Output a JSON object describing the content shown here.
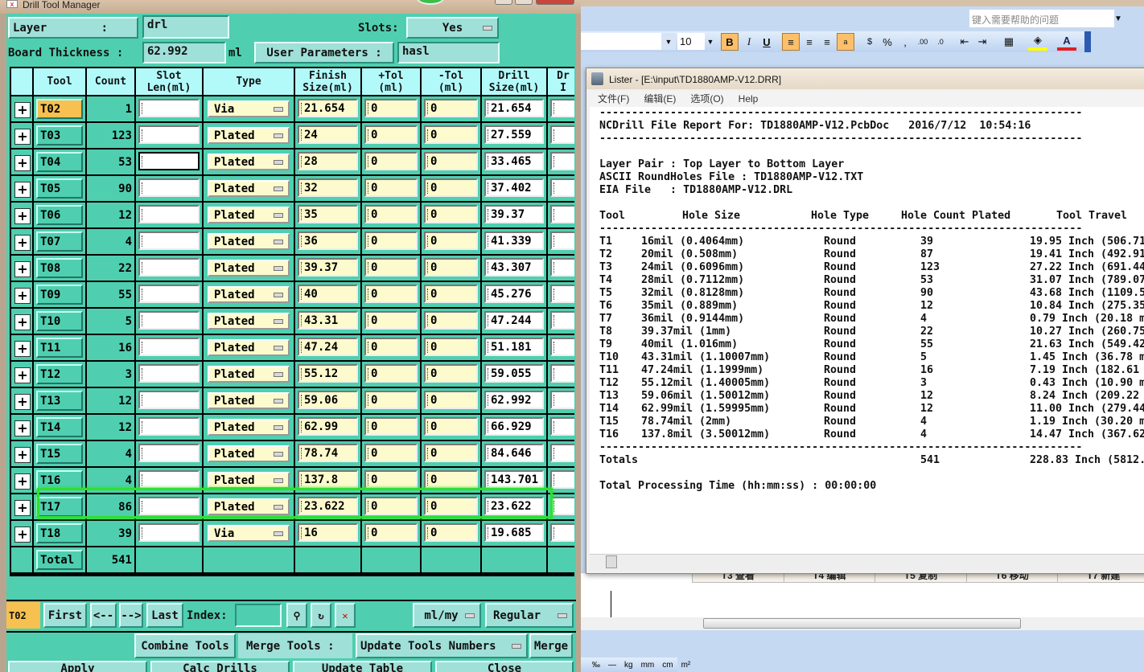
{
  "window": {
    "title": "Drill Tool Manager"
  },
  "top": {
    "layer_label": "Layer        :",
    "layer_value": "drl",
    "slots_label": "Slots:",
    "slots_value": "Yes",
    "board_label": "Board Thickness :",
    "board_value": "62.992",
    "board_unit": "ml",
    "user_params_label": "User Parameters :",
    "user_params_value": "hasl"
  },
  "table": {
    "headers": [
      "Tool",
      "Count",
      "Slot\nLen(ml)",
      "Type",
      "Finish\nSize(ml)",
      "+Tol\n(ml)",
      "-Tol\n(ml)",
      "Drill\nSize(ml)",
      "Dr\nI"
    ],
    "rows": [
      {
        "tool": "T02",
        "count": "1",
        "slot": "",
        "type": "Via",
        "finish": "21.654",
        "plus": "0",
        "minus": "0",
        "drill": "21.654",
        "selected": true
      },
      {
        "tool": "T03",
        "count": "123",
        "slot": "",
        "type": "Plated",
        "finish": "24",
        "plus": "0",
        "minus": "0",
        "drill": "27.559"
      },
      {
        "tool": "T04",
        "count": "53",
        "slot": "",
        "type": "Plated",
        "finish": "28",
        "plus": "0",
        "minus": "0",
        "drill": "33.465"
      },
      {
        "tool": "T05",
        "count": "90",
        "slot": "",
        "type": "Plated",
        "finish": "32",
        "plus": "0",
        "minus": "0",
        "drill": "37.402"
      },
      {
        "tool": "T06",
        "count": "12",
        "slot": "",
        "type": "Plated",
        "finish": "35",
        "plus": "0",
        "minus": "0",
        "drill": "39.37"
      },
      {
        "tool": "T07",
        "count": "4",
        "slot": "",
        "type": "Plated",
        "finish": "36",
        "plus": "0",
        "minus": "0",
        "drill": "41.339"
      },
      {
        "tool": "T08",
        "count": "22",
        "slot": "",
        "type": "Plated",
        "finish": "39.37",
        "plus": "0",
        "minus": "0",
        "drill": "43.307"
      },
      {
        "tool": "T09",
        "count": "55",
        "slot": "",
        "type": "Plated",
        "finish": "40",
        "plus": "0",
        "minus": "0",
        "drill": "45.276"
      },
      {
        "tool": "T10",
        "count": "5",
        "slot": "",
        "type": "Plated",
        "finish": "43.31",
        "plus": "0",
        "minus": "0",
        "drill": "47.244"
      },
      {
        "tool": "T11",
        "count": "16",
        "slot": "",
        "type": "Plated",
        "finish": "47.24",
        "plus": "0",
        "minus": "0",
        "drill": "51.181"
      },
      {
        "tool": "T12",
        "count": "3",
        "slot": "",
        "type": "Plated",
        "finish": "55.12",
        "plus": "0",
        "minus": "0",
        "drill": "59.055"
      },
      {
        "tool": "T13",
        "count": "12",
        "slot": "",
        "type": "Plated",
        "finish": "59.06",
        "plus": "0",
        "minus": "0",
        "drill": "62.992"
      },
      {
        "tool": "T14",
        "count": "12",
        "slot": "",
        "type": "Plated",
        "finish": "62.99",
        "plus": "0",
        "minus": "0",
        "drill": "66.929"
      },
      {
        "tool": "T15",
        "count": "4",
        "slot": "",
        "type": "Plated",
        "finish": "78.74",
        "plus": "0",
        "minus": "0",
        "drill": "84.646"
      },
      {
        "tool": "T16",
        "count": "4",
        "slot": "",
        "type": "Plated",
        "finish": "137.8",
        "plus": "0",
        "minus": "0",
        "drill": "143.701"
      },
      {
        "tool": "T17",
        "count": "86",
        "slot": "",
        "type": "Plated",
        "finish": "23.622",
        "plus": "0",
        "minus": "0",
        "drill": "23.622"
      },
      {
        "tool": "T18",
        "count": "39",
        "slot": "",
        "type": "Via",
        "finish": "16",
        "plus": "0",
        "minus": "0",
        "drill": "19.685"
      }
    ],
    "total_label": "Total",
    "total_count": "541"
  },
  "nav": {
    "current": "T02",
    "first": "First",
    "prev": "<--",
    "next": "-->",
    "last": "Last",
    "index_label": "Index:",
    "index_value": "",
    "units": "ml/my",
    "mode": "Regular"
  },
  "actions": {
    "combine": "Combine Tools",
    "merge_label": "Merge Tools :",
    "merge_option": "Update Tools Numbers",
    "merge": "Merge",
    "apply": "Apply",
    "calc": "Calc Drills",
    "update": "Update Table",
    "close": "Close"
  },
  "excel": {
    "help_placeholder": "键入需要帮助的问题",
    "font_size": "10",
    "sheet_tabs": [
      "T3 查看",
      "T4 编辑",
      "T5 复制",
      "T6 移动",
      "T7 新建"
    ],
    "units_toolbar": [
      "‰",
      "—",
      "kg",
      "mm",
      "cm",
      "m²"
    ],
    "accent": "#c6d9f2"
  },
  "lister": {
    "title": "Lister - [E:\\input\\TD1880AMP-V12.DRR]",
    "menu": [
      "文件(F)",
      "编辑(E)",
      "选项(O)",
      "Help"
    ],
    "dashes": "------------------------------------------------------------------------------------------",
    "report_line": "NCDrill File Report For: TD1880AMP-V12.PcbDoc   2016/7/12  10:54:16",
    "layer_pair": "Layer Pair : Top Layer to Bottom Layer",
    "ascii_file": "ASCII RoundHoles File : TD1880AMP-V12.TXT",
    "eia_file": "EIA File   : TD1880AMP-V12.DRL",
    "headers": [
      "Tool",
      "Hole Size",
      "Hole Type",
      "Hole Count Plated",
      "Tool Travel"
    ],
    "rows": [
      [
        "T1",
        "16mil (0.4064mm)",
        "Round",
        "39",
        "19.95 Inch (506.71"
      ],
      [
        "T2",
        "20mil (0.508mm)",
        "Round",
        "87",
        "19.41 Inch (492.91"
      ],
      [
        "T3",
        "24mil (0.6096mm)",
        "Round",
        "123",
        "27.22 Inch (691.44"
      ],
      [
        "T4",
        "28mil (0.7112mm)",
        "Round",
        "53",
        "31.07 Inch (789.07"
      ],
      [
        "T5",
        "32mil (0.8128mm)",
        "Round",
        "90",
        "43.68 Inch (1109.5"
      ],
      [
        "T6",
        "35mil (0.889mm)",
        "Round",
        "12",
        "10.84 Inch (275.35"
      ],
      [
        "T7",
        "36mil (0.9144mm)",
        "Round",
        "4",
        "0.79 Inch (20.18 m"
      ],
      [
        "T8",
        "39.37mil (1mm)",
        "Round",
        "22",
        "10.27 Inch (260.75"
      ],
      [
        "T9",
        "40mil (1.016mm)",
        "Round",
        "55",
        "21.63 Inch (549.42"
      ],
      [
        "T10",
        "43.31mil (1.10007mm)",
        "Round",
        "5",
        "1.45 Inch (36.78 m"
      ],
      [
        "T11",
        "47.24mil (1.1999mm)",
        "Round",
        "16",
        "7.19 Inch (182.61"
      ],
      [
        "T12",
        "55.12mil (1.40005mm)",
        "Round",
        "3",
        "0.43 Inch (10.90 m"
      ],
      [
        "T13",
        "59.06mil (1.50012mm)",
        "Round",
        "12",
        "8.24 Inch (209.22"
      ],
      [
        "T14",
        "62.99mil (1.59995mm)",
        "Round",
        "12",
        "11.00 Inch (279.44"
      ],
      [
        "T15",
        "78.74mil (2mm)",
        "Round",
        "4",
        "1.19 Inch (30.20 m"
      ],
      [
        "T16",
        "137.8mil (3.50012mm)",
        "Round",
        "4",
        "14.47 Inch (367.62"
      ]
    ],
    "totals_label": "Totals",
    "totals_count": "541",
    "totals_travel": "228.83 Inch (5812.",
    "processing": "Total Processing Time (hh:mm:ss) : 00:00:00"
  }
}
